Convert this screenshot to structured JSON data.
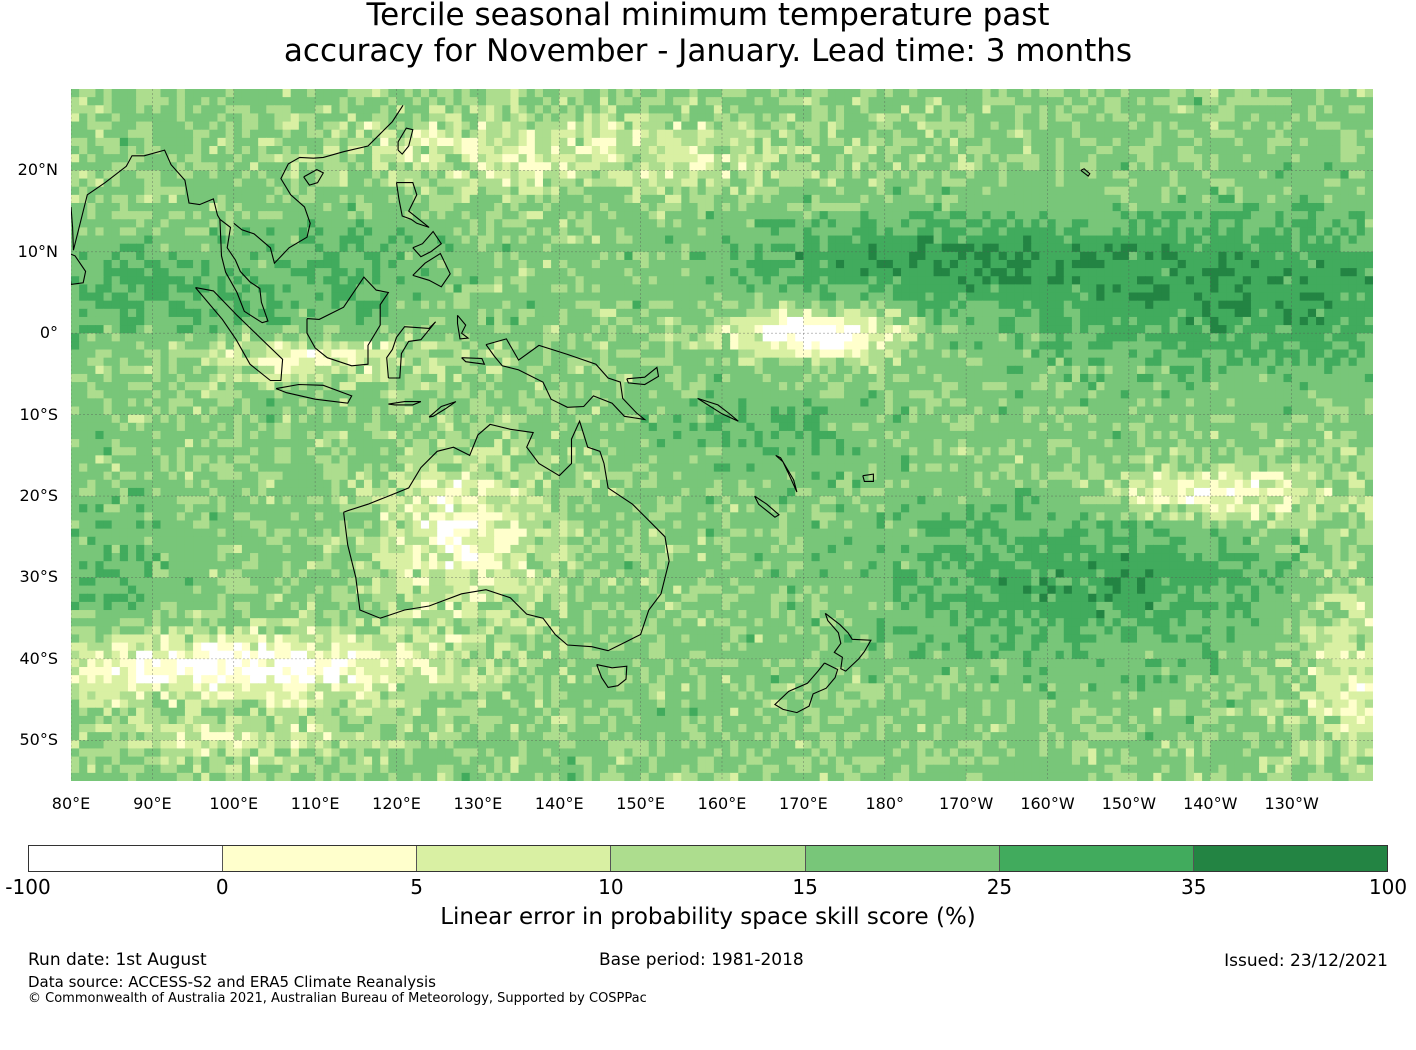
{
  "title": {
    "line1": "Tercile seasonal minimum temperature past",
    "line2": "accuracy for November - January. Lead time: 3 months"
  },
  "map": {
    "lon_range": [
      80,
      240
    ],
    "lat_range": [
      -55,
      30
    ],
    "lat_labels": [
      "20°N",
      "10°N",
      "0°",
      "10°S",
      "20°S",
      "30°S",
      "40°S",
      "50°S"
    ],
    "lat_values": [
      20,
      10,
      0,
      -10,
      -20,
      -30,
      -40,
      -50
    ],
    "lon_labels": [
      "80°E",
      "90°E",
      "100°E",
      "110°E",
      "120°E",
      "130°E",
      "140°E",
      "150°E",
      "160°E",
      "170°E",
      "180°",
      "170°W",
      "160°W",
      "150°W",
      "140°W",
      "130°W"
    ],
    "lon_values": [
      80,
      90,
      100,
      110,
      120,
      130,
      140,
      150,
      160,
      170,
      180,
      190,
      200,
      210,
      220,
      230
    ],
    "coastline_color": "#000000"
  },
  "colorbar": {
    "ticks": [
      "-100",
      "0",
      "5",
      "10",
      "15",
      "25",
      "35",
      "100"
    ],
    "colors": [
      "#ffffff",
      "#ffffcc",
      "#d9f0a3",
      "#addd8e",
      "#78c679",
      "#41ab5d",
      "#238443"
    ],
    "label": "Linear error in probability space skill score (%)"
  },
  "footer": {
    "run_date": "Run date: 1st August",
    "base_period": "Base period: 1981-2018",
    "issued": "Issued: 23/12/2021",
    "data_source": "Data source: ACCESS-S2 and ERA5 Climate Reanalysis",
    "copyright": "© Commonwealth of Australia 2021, Australian Bureau of Meteorology, Supported by COSPPac"
  }
}
